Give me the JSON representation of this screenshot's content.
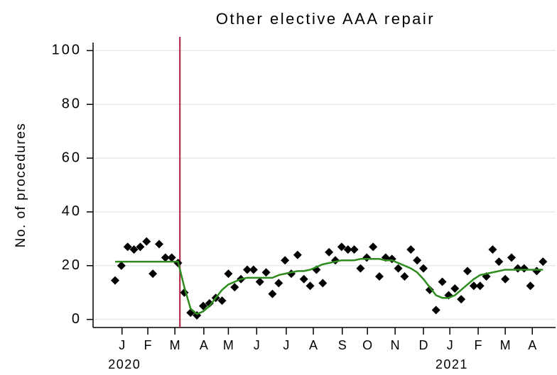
{
  "chart_data": {
    "type": "scatter",
    "title": "Other elective AAA repair",
    "y_label": "No. of procedures",
    "x": [
      0,
      1,
      2,
      3,
      4,
      5,
      6,
      7,
      8,
      9,
      10,
      11,
      12,
      13,
      14,
      15,
      16,
      17,
      18,
      19,
      20,
      21,
      22,
      23,
      24,
      25,
      26,
      27,
      28,
      29,
      30,
      31,
      32,
      33,
      34,
      35,
      36,
      37,
      38,
      39,
      40,
      41,
      42,
      43,
      44,
      45,
      46,
      47,
      48,
      49,
      50,
      51,
      52,
      53,
      54,
      55,
      56,
      57,
      58,
      59,
      60,
      61,
      62,
      63,
      64,
      65,
      66,
      67,
      68
    ],
    "series": [
      {
        "mark": "diamond",
        "color": "#000000",
        "values": [
          14.5,
          20,
          27,
          26,
          27,
          29,
          17,
          28,
          23,
          23,
          21,
          10,
          2.5,
          1.5,
          5,
          6,
          8,
          7,
          17,
          12,
          15,
          18.5,
          18.5,
          14,
          17.5,
          9.5,
          13.5,
          22,
          17,
          24,
          15,
          12.5,
          18.5,
          13.5,
          25,
          22,
          27,
          26,
          26,
          19,
          23,
          27,
          16,
          23,
          22.5,
          19,
          16,
          26,
          22,
          19,
          11,
          3.5,
          14,
          9,
          11.5,
          7.5,
          18,
          12.5,
          12.5,
          16,
          26,
          21.5,
          15,
          23,
          19,
          19,
          12.5,
          18,
          21.5
        ]
      },
      {
        "mark": "line",
        "color": "#2e8b1e",
        "values": [
          21.5,
          21.5,
          21.5,
          21.5,
          21.5,
          21.5,
          21.5,
          21.5,
          21.5,
          21.5,
          21.5,
          12,
          4,
          2,
          3,
          5,
          8,
          11,
          13,
          14,
          15,
          15.5,
          15.5,
          15.5,
          15.5,
          15.5,
          16.5,
          17,
          17.5,
          18,
          18,
          18.5,
          19.5,
          20.5,
          21,
          21.5,
          22,
          22,
          22,
          22.5,
          22.5,
          22.5,
          22.5,
          22,
          22,
          21,
          20,
          19,
          17.5,
          15,
          12,
          9,
          8,
          8,
          9,
          11,
          13,
          15,
          16.5,
          17,
          17.5,
          18,
          18.5,
          18.5,
          18.5,
          18.5,
          18.5,
          18.5,
          18.5
        ]
      }
    ],
    "intervention_x": 10.3,
    "intervention_color": "#b0183c",
    "xlim": [
      -3.5,
      70
    ],
    "xticks": [
      {
        "value": 1.1,
        "label": "J"
      },
      {
        "value": 5.2,
        "label": "F"
      },
      {
        "value": 9.5,
        "label": "M"
      },
      {
        "value": 14.1,
        "label": "A"
      },
      {
        "value": 18,
        "label": "M"
      },
      {
        "value": 22.5,
        "label": "J"
      },
      {
        "value": 27.2,
        "label": "J"
      },
      {
        "value": 31.5,
        "label": "A"
      },
      {
        "value": 36.1,
        "label": "S"
      },
      {
        "value": 40.1,
        "label": "O"
      },
      {
        "value": 44.5,
        "label": "N"
      },
      {
        "value": 49,
        "label": "D"
      },
      {
        "value": 53.2,
        "label": "J"
      },
      {
        "value": 57.7,
        "label": "F"
      },
      {
        "value": 62,
        "label": "M"
      },
      {
        "value": 66.3,
        "label": "A"
      }
    ],
    "year_labels": [
      {
        "value": 1.5,
        "label": "2020"
      },
      {
        "value": 53.5,
        "label": "2021"
      }
    ],
    "ylim": [
      -3,
      103
    ],
    "yticks": [
      0,
      20,
      40,
      60,
      80,
      100
    ],
    "grid": true
  }
}
